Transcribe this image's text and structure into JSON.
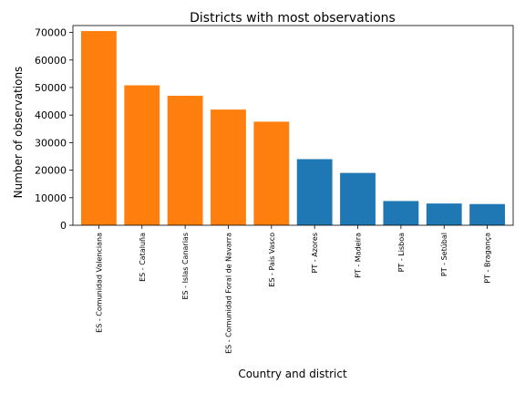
{
  "chart_data": {
    "type": "bar",
    "title": "Districts with most observations",
    "xlabel": "Country and district",
    "ylabel": "Number of observations",
    "ylim": [
      0,
      72500
    ],
    "yticks": [
      0,
      10000,
      20000,
      30000,
      40000,
      50000,
      60000,
      70000
    ],
    "categories": [
      "ES - Comunidad Valenciana",
      "ES - Cataluña",
      "ES - Islas Canarias",
      "ES - Comunidad Foral de Navarra",
      "ES - País Vasco",
      "PT - Azores",
      "PT - Madeira",
      "PT - Lisboa",
      "PT - Setúbal",
      "PT - Bragança"
    ],
    "values": [
      70500,
      50800,
      47000,
      42000,
      37600,
      24000,
      19000,
      8800,
      7900,
      7700
    ],
    "bar_colors": [
      "#ff7f0e",
      "#ff7f0e",
      "#ff7f0e",
      "#ff7f0e",
      "#ff7f0e",
      "#1f77b4",
      "#1f77b4",
      "#1f77b4",
      "#1f77b4",
      "#1f77b4"
    ],
    "grid": false,
    "legend": "none"
  }
}
